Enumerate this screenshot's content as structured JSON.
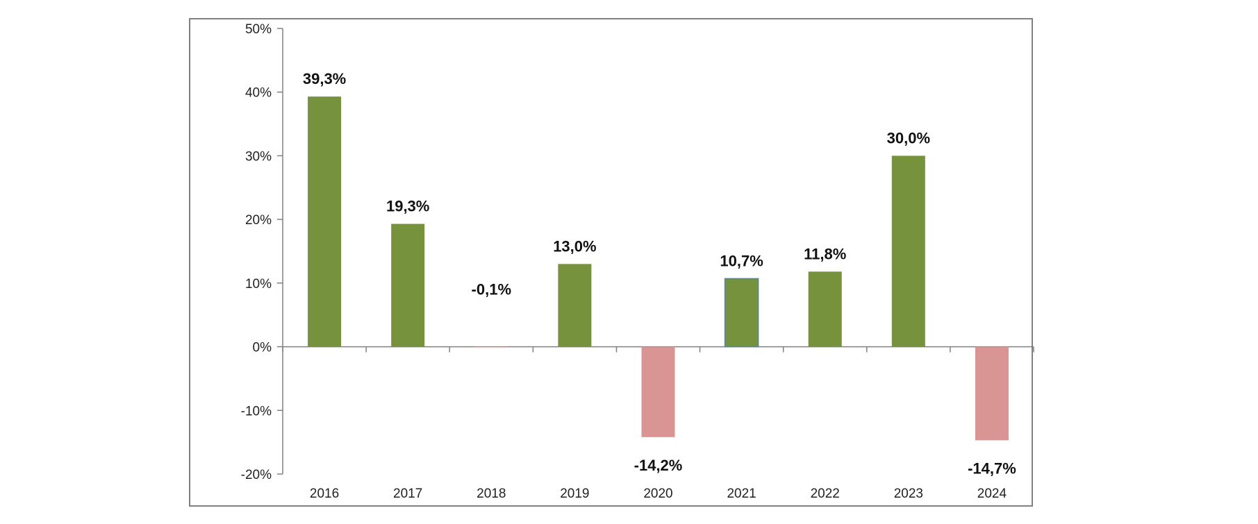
{
  "chart_data": {
    "type": "bar",
    "categories": [
      "2016",
      "2017",
      "2018",
      "2019",
      "2020",
      "2021",
      "2022",
      "2023",
      "2024"
    ],
    "values": [
      39.3,
      19.3,
      -0.1,
      13.0,
      -14.2,
      10.7,
      11.8,
      30.0,
      -14.7
    ],
    "data_labels": [
      "39,3%",
      "19,3%",
      "-0,1%",
      "13,0%",
      "-14,2%",
      "10,7%",
      "11,8%",
      "30,0%",
      "-14,7%"
    ],
    "y_ticks": [
      50,
      40,
      30,
      20,
      10,
      0,
      -10,
      -20
    ],
    "y_tick_labels": [
      "50%",
      "40%",
      "30%",
      "20%",
      "10%",
      "0%",
      "-10%",
      "-20%"
    ],
    "ylim": [
      -20,
      50
    ],
    "grid": false,
    "legend": "none",
    "title": "",
    "xlabel": "",
    "ylabel": "",
    "colors": {
      "positive": "#76923c",
      "negative": "#d99594",
      "highlight_border": "#4f81bd",
      "axis": "#808080",
      "frame": "#808080"
    }
  }
}
